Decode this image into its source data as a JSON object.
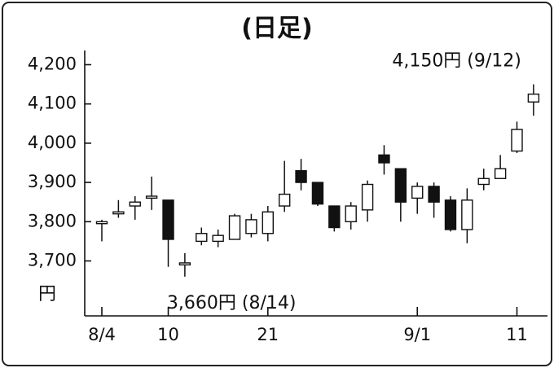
{
  "chart_data": {
    "type": "candlestick",
    "title": "(日足)",
    "y_unit": "円",
    "categories": [
      "8/4",
      null,
      null,
      null,
      "10",
      null,
      null,
      null,
      null,
      null,
      "21",
      null,
      null,
      null,
      null,
      null,
      null,
      null,
      null,
      "9/1",
      null,
      null,
      null,
      null,
      null,
      "11",
      null
    ],
    "open": [
      3795,
      3820,
      3840,
      3860,
      3855,
      3690,
      3750,
      3750,
      3755,
      3770,
      3770,
      3840,
      3930,
      3900,
      3840,
      3800,
      3830,
      3970,
      3935,
      3860,
      3890,
      3855,
      3780,
      3895,
      3910,
      3980,
      4105
    ],
    "high": [
      3805,
      3855,
      3865,
      3915,
      3855,
      3720,
      3785,
      3780,
      3820,
      3820,
      3840,
      3955,
      3960,
      3900,
      3840,
      3850,
      3905,
      3995,
      3935,
      3900,
      3900,
      3865,
      3885,
      3935,
      3970,
      4055,
      4150
    ],
    "low": [
      3750,
      3810,
      3805,
      3830,
      3685,
      3660,
      3740,
      3735,
      3755,
      3760,
      3750,
      3825,
      3880,
      3840,
      3775,
      3780,
      3800,
      3920,
      3800,
      3820,
      3810,
      3775,
      3745,
      3880,
      3910,
      3975,
      4070
    ],
    "close": [
      3800,
      3825,
      3850,
      3865,
      3755,
      3695,
      3770,
      3765,
      3815,
      3805,
      3825,
      3870,
      3900,
      3845,
      3785,
      3840,
      3895,
      3950,
      3850,
      3890,
      3850,
      3780,
      3855,
      3910,
      3935,
      4035,
      4125
    ],
    "ylim": [
      3560,
      4230
    ],
    "yticks": [
      {
        "value": 3700,
        "label": "3,700"
      },
      {
        "value": 3800,
        "label": "3,800"
      },
      {
        "value": 3900,
        "label": "3,900"
      },
      {
        "value": 4000,
        "label": "4,000"
      },
      {
        "value": 4100,
        "label": "4,100"
      },
      {
        "value": 4200,
        "label": "4,200"
      }
    ],
    "up_color": "#ffffff",
    "down_color": "#111111",
    "annotations": [
      {
        "text": "4,150円 (9/12)",
        "index": 26,
        "value": 4150
      },
      {
        "text": "3,660円 (8/14)",
        "index": 5,
        "value": 3660
      }
    ]
  }
}
